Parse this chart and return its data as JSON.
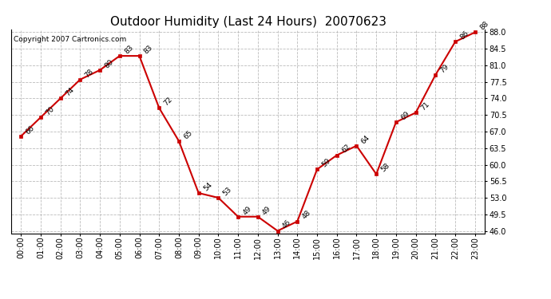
{
  "title": "Outdoor Humidity (Last 24 Hours)  20070623",
  "copyright": "Copyright 2007 Cartronics.com",
  "hours": [
    0,
    1,
    2,
    3,
    4,
    5,
    6,
    7,
    8,
    9,
    10,
    11,
    12,
    13,
    14,
    15,
    16,
    17,
    18,
    19,
    20,
    21,
    22,
    23
  ],
  "hour_labels": [
    "00:00",
    "01:00",
    "02:00",
    "03:00",
    "04:00",
    "05:00",
    "06:00",
    "07:00",
    "08:00",
    "09:00",
    "10:00",
    "11:00",
    "12:00",
    "13:00",
    "14:00",
    "15:00",
    "16:00",
    "17:00",
    "18:00",
    "19:00",
    "20:00",
    "21:00",
    "22:00",
    "23:00"
  ],
  "values": [
    66,
    70,
    74,
    78,
    80,
    83,
    83,
    72,
    65,
    54,
    53,
    49,
    49,
    46,
    48,
    59,
    62,
    64,
    58,
    69,
    71,
    79,
    86,
    88
  ],
  "ylim_min": 45.5,
  "ylim_max": 88.5,
  "yticks": [
    46.0,
    49.5,
    53.0,
    56.5,
    60.0,
    63.5,
    67.0,
    70.5,
    74.0,
    77.5,
    81.0,
    84.5,
    88.0
  ],
  "line_color": "#cc0000",
  "marker_color": "#cc0000",
  "bg_color": "#ffffff",
  "grid_color": "#bbbbbb",
  "title_fontsize": 11,
  "label_fontsize": 6.5,
  "tick_fontsize": 7,
  "copyright_fontsize": 6.5
}
